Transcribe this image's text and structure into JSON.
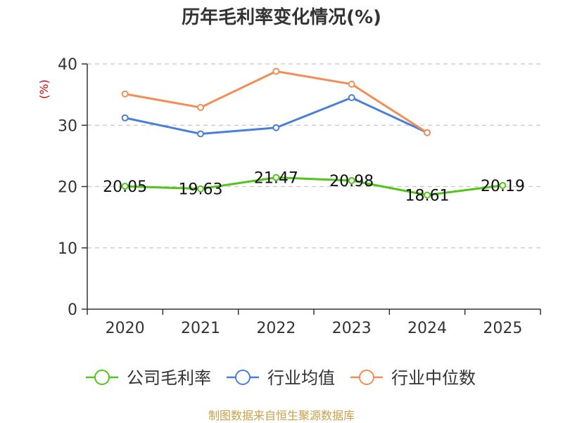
{
  "chart_data": {
    "type": "line",
    "title": "历年毛利率变化情况(%)",
    "ylabel": "(%)",
    "xlabel": "",
    "categories": [
      "2020",
      "2021",
      "2022",
      "2023",
      "2024",
      "2025"
    ],
    "ylim": [
      0,
      40
    ],
    "yticks": [
      0,
      10,
      20,
      30,
      40
    ],
    "grid": true,
    "legend_position": "bottom",
    "series": [
      {
        "name": "公司毛利率",
        "color": "#52c41a",
        "values": [
          20.05,
          19.63,
          21.47,
          20.98,
          18.61,
          20.19
        ],
        "labels": [
          "20.05",
          "19.63",
          "21.47",
          "20.98",
          "18.61",
          "20.19"
        ]
      },
      {
        "name": "行业均值",
        "color": "#4a7fd9",
        "values": [
          31.2,
          28.6,
          29.6,
          34.5,
          28.8,
          null
        ]
      },
      {
        "name": "行业中位数",
        "color": "#f28e55",
        "values": [
          35.1,
          32.9,
          38.8,
          36.7,
          28.8,
          null
        ]
      }
    ]
  },
  "source": "制图数据来自恒生聚源数据库"
}
